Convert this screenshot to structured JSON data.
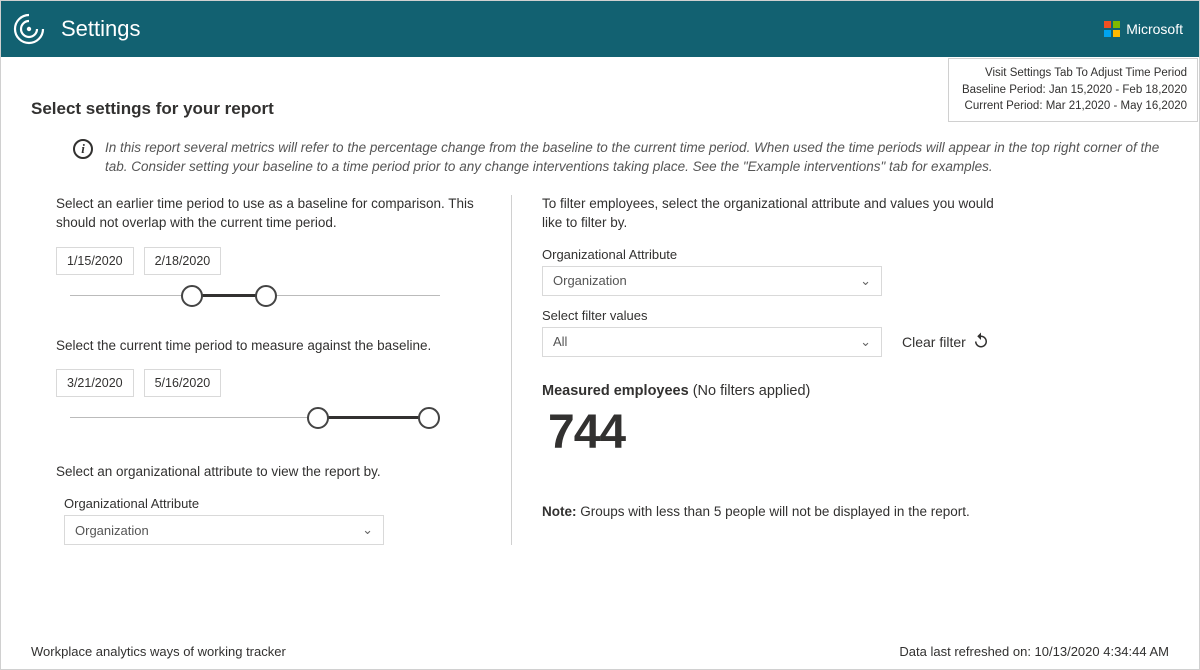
{
  "header": {
    "title": "Settings",
    "brand": "Microsoft"
  },
  "timebox": {
    "line1": "Visit Settings Tab To Adjust Time Period",
    "line2": "Baseline Period: Jan 15,2020 - Feb 18,2020",
    "line3": "Current Period: Mar 21,2020 - May 16,2020"
  },
  "heading": "Select settings for your report",
  "info": "In this report several metrics will refer to the percentage change from the baseline to the current time period.  When used the time periods will appear in the top right corner of the tab.  Consider setting your baseline to a time period prior to any change interventions taking place. See the \"Example interventions\" tab for examples.",
  "left": {
    "baseline_instruction": "Select an earlier time period to use as a baseline for comparison. This should not overlap with the current time period.",
    "baseline_start": "1/15/2020",
    "baseline_end": "2/18/2020",
    "baseline_slider": {
      "left_pct": 33,
      "right_pct": 53
    },
    "current_instruction": "Select the current time period to measure against the baseline.",
    "current_start": "3/21/2020",
    "current_end": "5/16/2020",
    "current_slider": {
      "left_pct": 67,
      "right_pct": 97
    },
    "attr_instruction": "Select an organizational attribute to view the report by.",
    "attr_label": "Organizational Attribute",
    "attr_value": "Organization"
  },
  "right": {
    "filter_instruction": "To filter employees, select the organizational attribute and values you would like to filter by.",
    "attr_label": "Organizational Attribute",
    "attr_value": "Organization",
    "values_label": "Select filter values",
    "values_value": "All",
    "clear_label": "Clear filter",
    "measured_label": "Measured employees",
    "measured_suffix": " (No filters applied)",
    "measured_count": "744",
    "note_label": "Note:",
    "note_text": " Groups with less than 5 people will not be displayed in the report."
  },
  "footer": {
    "left": "Workplace analytics ways of working tracker",
    "right": "Data last refreshed on: 10/13/2020 4:34:44 AM"
  }
}
